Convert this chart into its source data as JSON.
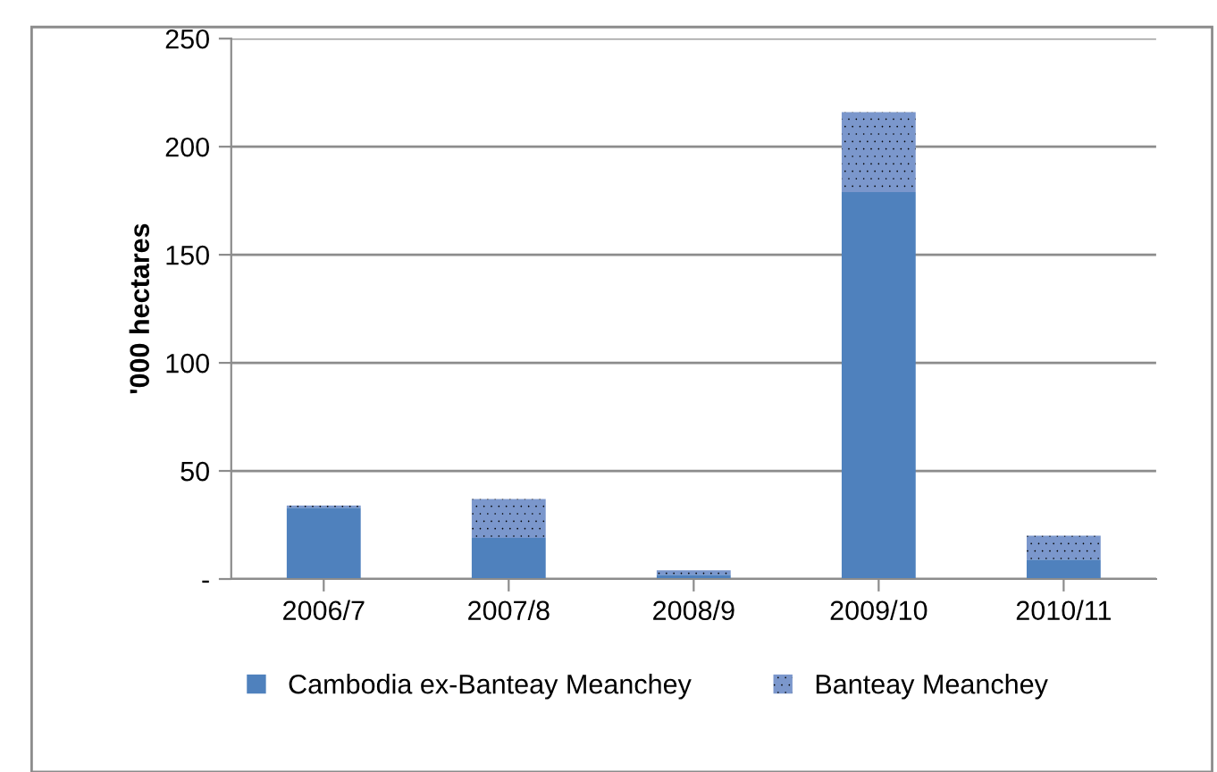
{
  "chart_data": {
    "type": "bar",
    "stacked": true,
    "ylabel": "'000 hectares",
    "categories": [
      "2006/7",
      "2007/8",
      "2008/9",
      "2009/10",
      "2010/11"
    ],
    "series": [
      {
        "name": "Cambodia ex-Banteay Meanchey",
        "color": "#4f81bd",
        "values": [
          33,
          19,
          2,
          179,
          9
        ]
      },
      {
        "name": "Banteay Meanchey",
        "color": "#7b97cc",
        "values": [
          1,
          18,
          2,
          37,
          11
        ]
      }
    ],
    "ylim": [
      0,
      250
    ],
    "yticks": [
      {
        "value": 0,
        "label": "-"
      },
      50,
      100,
      150,
      200,
      250
    ],
    "grid": "y",
    "legend": "bottom"
  }
}
